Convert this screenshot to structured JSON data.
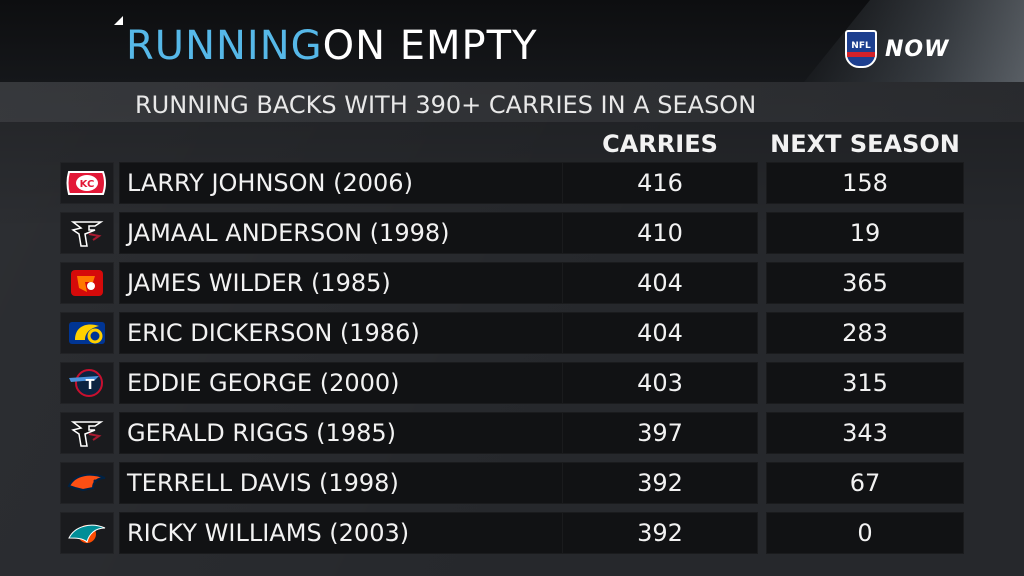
{
  "header": {
    "title_part1": "RUNNING",
    "title_part2": "ON EMPTY",
    "network_logo": "NFL",
    "network_suffix": "NOW"
  },
  "subtitle": "RUNNING BACKS WITH 390+ CARRIES IN A SEASON",
  "columns": {
    "carries": "CARRIES",
    "next_season": "NEXT SEASON"
  },
  "colors": {
    "accent_blue": "#56b8e8",
    "background": "#26282c",
    "cell": "#111214"
  },
  "chart_data": {
    "type": "table",
    "title": "RUNNING ON EMPTY",
    "subtitle": "RUNNING BACKS WITH 390+ CARRIES IN A SEASON",
    "columns": [
      "CARRIES",
      "NEXT SEASON"
    ],
    "rows": [
      {
        "player": "LARRY JOHNSON (2006)",
        "team_icon": "chiefs-logo-icon",
        "carries": "416",
        "next_season": "158"
      },
      {
        "player": "JAMAAL ANDERSON (1998)",
        "team_icon": "falcons-logo-icon",
        "carries": "410",
        "next_season": "19"
      },
      {
        "player": "JAMES WILDER (1985)",
        "team_icon": "buccaneers-logo-icon",
        "carries": "404",
        "next_season": "365"
      },
      {
        "player": "ERIC DICKERSON (1986)",
        "team_icon": "rams-logo-icon",
        "carries": "404",
        "next_season": "283"
      },
      {
        "player": "EDDIE GEORGE (2000)",
        "team_icon": "titans-logo-icon",
        "carries": "403",
        "next_season": "315"
      },
      {
        "player": "GERALD RIGGS (1985)",
        "team_icon": "falcons-logo-icon",
        "carries": "397",
        "next_season": "343"
      },
      {
        "player": "TERRELL DAVIS (1998)",
        "team_icon": "broncos-logo-icon",
        "carries": "392",
        "next_season": "67"
      },
      {
        "player": "RICKY WILLIAMS (2003)",
        "team_icon": "dolphins-logo-icon",
        "carries": "392",
        "next_season": "0"
      }
    ]
  }
}
